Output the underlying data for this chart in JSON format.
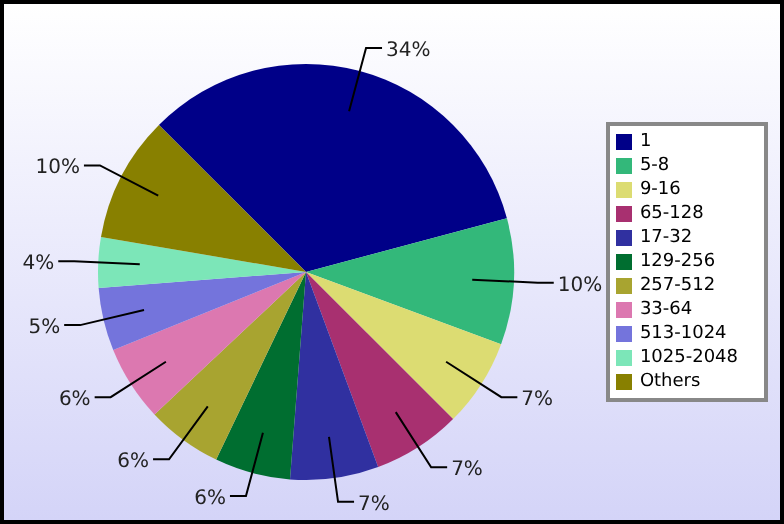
{
  "chart_data": {
    "type": "pie",
    "categories": [
      "1",
      "5-8",
      "9-16",
      "65-128",
      "17-32",
      "129-256",
      "257-512",
      "33-64",
      "513-1024",
      "1025-2048",
      "Others"
    ],
    "values": [
      34,
      10,
      7,
      7,
      7,
      6,
      6,
      6,
      5,
      4,
      10
    ],
    "colors": [
      "#000088",
      "#33b87a",
      "#dcdc72",
      "#a83070",
      "#3030a0",
      "#006e30",
      "#a8a430",
      "#dc78b0",
      "#7474dc",
      "#7ce6b8",
      "#888000"
    ],
    "value_labels": [
      "34%",
      "10%",
      "7%",
      "7%",
      "7%",
      "6%",
      "6%",
      "6%",
      "5%",
      "4%",
      "10%"
    ],
    "legend": "right"
  }
}
